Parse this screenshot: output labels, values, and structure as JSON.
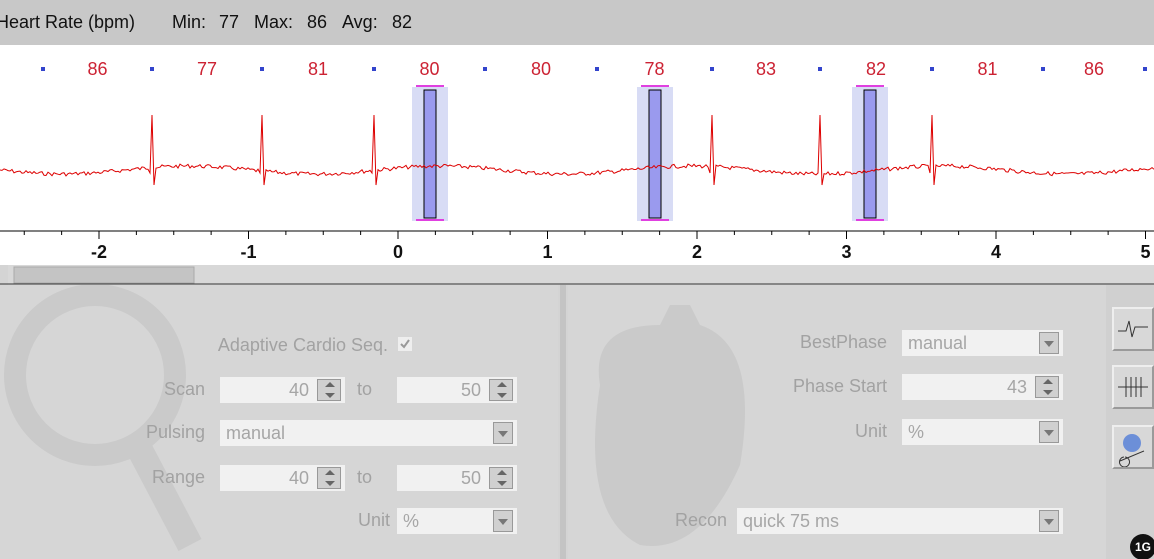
{
  "header": {
    "title": "Heart Rate (bpm)",
    "min_label": "Min:",
    "min": 77,
    "max_label": "Max:",
    "max": 86,
    "avg_label": "Avg:",
    "avg": 82
  },
  "heart_rates": [
    86,
    77,
    81,
    80,
    80,
    78,
    83,
    82,
    81,
    86
  ],
  "time_axis": {
    "ticks": [
      -2,
      -1,
      0,
      1,
      2,
      3,
      4,
      5
    ]
  },
  "left_panel": {
    "adaptive_label": "Adaptive Cardio Seq.",
    "scan": {
      "label": "Scan",
      "from": 40,
      "to_label": "to",
      "to": 50
    },
    "pulsing": {
      "label": "Pulsing",
      "value": "manual"
    },
    "range": {
      "label": "Range",
      "from": 40,
      "to_label": "to",
      "to": 50
    },
    "unit": {
      "label": "Unit",
      "value": "%"
    }
  },
  "right_panel": {
    "best_phase": {
      "label": "BestPhase",
      "value": "manual"
    },
    "phase_start": {
      "label": "Phase Start",
      "value": 43
    },
    "unit": {
      "label": "Unit",
      "value": "%"
    },
    "recon": {
      "label": "Recon",
      "value": "quick 75 ms"
    }
  },
  "badge": "1G"
}
